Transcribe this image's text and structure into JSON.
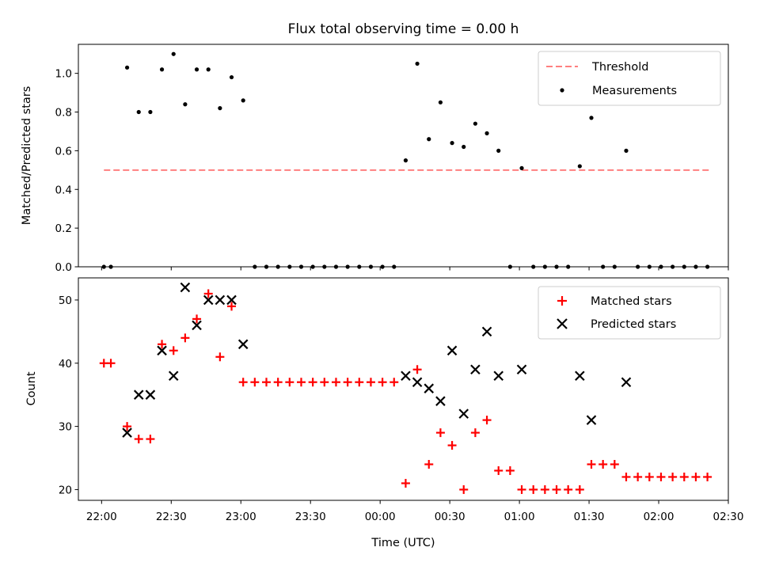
{
  "chart_data": [
    {
      "type": "scatter",
      "title": "Flux total observing time = 0.00 h",
      "xlabel": "",
      "ylabel": "Matched/Predicted stars",
      "xlim": [
        "21:50",
        "02:30"
      ],
      "ylim": [
        0,
        1.15
      ],
      "yticks": [
        0.0,
        0.2,
        0.4,
        0.6,
        0.8,
        1.0
      ],
      "ytick_labels": [
        "0.0",
        "0.2",
        "0.4",
        "0.6",
        "0.8",
        "1.0"
      ],
      "legend_position": "top-right",
      "series": [
        {
          "name": "Threshold",
          "kind": "dashed-line",
          "color": "#ff7f7f",
          "x": [
            "22:01",
            "02:22"
          ],
          "y": [
            0.5,
            0.5
          ]
        },
        {
          "name": "Measurements",
          "kind": "dots",
          "color": "#000000",
          "x": [
            "22:01",
            "22:04",
            "22:11",
            "22:16",
            "22:21",
            "22:26",
            "22:31",
            "22:36",
            "22:41",
            "22:46",
            "22:51",
            "22:56",
            "23:01",
            "23:06",
            "23:11",
            "23:16",
            "23:21",
            "23:26",
            "23:31",
            "23:36",
            "23:41",
            "23:46",
            "23:51",
            "23:56",
            "00:01",
            "00:06",
            "00:11",
            "00:16",
            "00:21",
            "00:26",
            "00:31",
            "00:36",
            "00:41",
            "00:46",
            "00:51",
            "00:56",
            "01:01",
            "01:06",
            "01:11",
            "01:16",
            "01:21",
            "01:26",
            "01:31",
            "01:36",
            "01:41",
            "01:46",
            "01:51",
            "01:56",
            "02:01",
            "02:06",
            "02:11",
            "02:16",
            "02:21"
          ],
          "y": [
            0,
            0,
            1.03,
            0.8,
            0.8,
            1.02,
            1.1,
            0.84,
            1.02,
            1.02,
            0.82,
            0.98,
            0.86,
            0,
            0,
            0,
            0,
            0,
            0,
            0,
            0,
            0,
            0,
            0,
            0,
            0,
            0.55,
            1.05,
            0.66,
            0.85,
            0.64,
            0.62,
            0.74,
            0.69,
            0.6,
            0,
            0.51,
            0,
            0,
            0,
            0,
            0.52,
            0.77,
            0,
            0,
            0.6,
            0,
            0,
            0,
            0,
            0,
            0,
            0
          ]
        }
      ]
    },
    {
      "type": "scatter",
      "title": "",
      "xlabel": "Time (UTC)",
      "ylabel": "Count",
      "xlim": [
        "21:50",
        "02:30"
      ],
      "ylim": [
        18.3,
        53.5
      ],
      "xticks": [
        "22:00",
        "22:30",
        "23:00",
        "23:30",
        "00:00",
        "00:30",
        "01:00",
        "01:30",
        "02:00",
        "02:30"
      ],
      "yticks": [
        20,
        30,
        40,
        50
      ],
      "ytick_labels": [
        "20",
        "30",
        "40",
        "50"
      ],
      "legend_position": "top-right",
      "series": [
        {
          "name": "Matched stars",
          "marker": "plus",
          "color": "#ff0000",
          "x": [
            "22:01",
            "22:04",
            "22:11",
            "22:16",
            "22:21",
            "22:26",
            "22:31",
            "22:36",
            "22:41",
            "22:46",
            "22:51",
            "22:56",
            "23:01",
            "23:06",
            "23:11",
            "23:16",
            "23:21",
            "23:26",
            "23:31",
            "23:36",
            "23:41",
            "23:46",
            "23:51",
            "23:56",
            "00:01",
            "00:06",
            "00:11",
            "00:16",
            "00:21",
            "00:26",
            "00:31",
            "00:36",
            "00:41",
            "00:46",
            "00:51",
            "00:56",
            "01:01",
            "01:06",
            "01:11",
            "01:16",
            "01:21",
            "01:26",
            "01:31",
            "01:36",
            "01:41",
            "01:46",
            "01:51",
            "01:56",
            "02:01",
            "02:06",
            "02:11",
            "02:16",
            "02:21"
          ],
          "y": [
            40,
            40,
            30,
            28,
            28,
            43,
            42,
            44,
            47,
            51,
            41,
            49,
            37,
            37,
            37,
            37,
            37,
            37,
            37,
            37,
            37,
            37,
            37,
            37,
            37,
            37,
            21,
            39,
            24,
            29,
            27,
            20,
            29,
            31,
            23,
            23,
            20,
            20,
            20,
            20,
            20,
            20,
            24,
            24,
            24,
            22,
            22,
            22,
            22,
            22,
            22,
            22,
            22
          ]
        },
        {
          "name": "Predicted stars",
          "marker": "x",
          "color": "#000000",
          "x": [
            "22:11",
            "22:16",
            "22:21",
            "22:26",
            "22:31",
            "22:36",
            "22:41",
            "22:46",
            "22:51",
            "22:56",
            "23:01",
            "00:11",
            "00:16",
            "00:21",
            "00:26",
            "00:31",
            "00:36",
            "00:41",
            "00:46",
            "00:51",
            "01:01",
            "01:26",
            "01:31",
            "01:46"
          ],
          "y": [
            29,
            35,
            35,
            42,
            38,
            52,
            46,
            50,
            50,
            50,
            43,
            38,
            37,
            36,
            34,
            42,
            32,
            39,
            45,
            38,
            39,
            38,
            31,
            37
          ]
        }
      ]
    }
  ]
}
